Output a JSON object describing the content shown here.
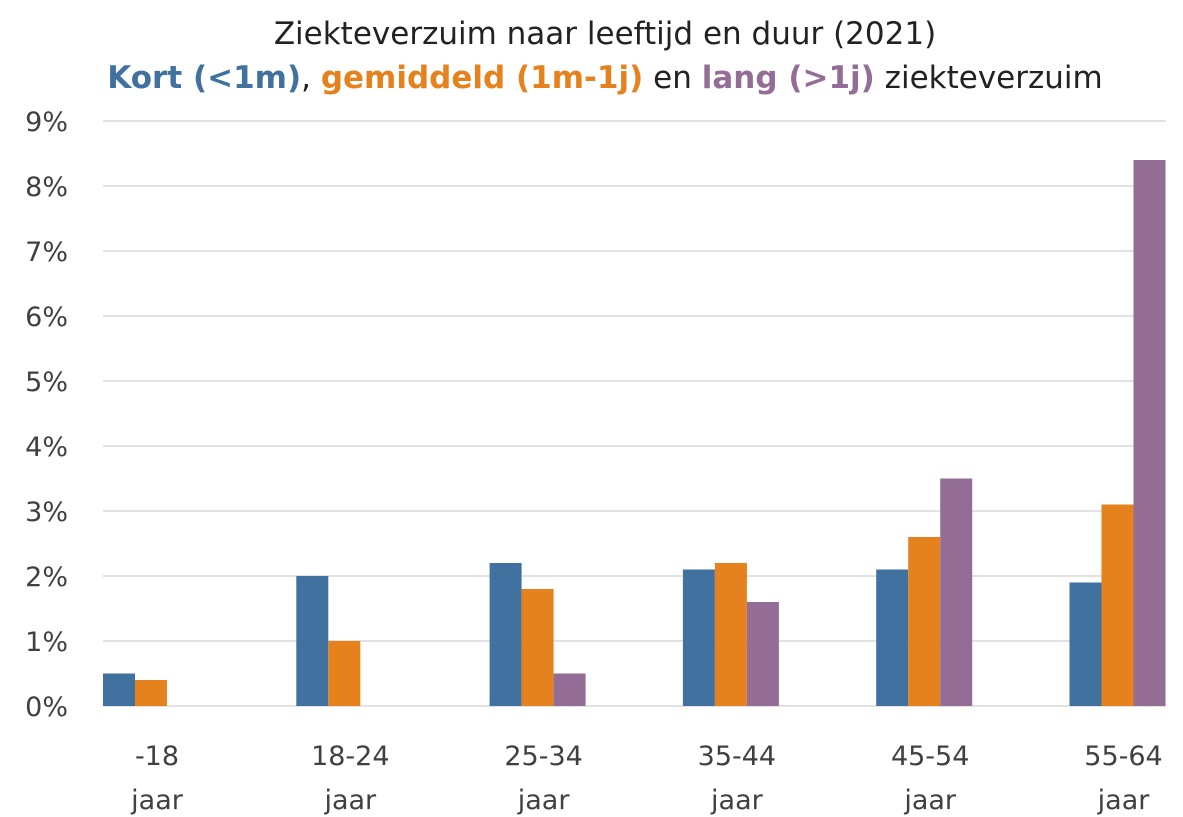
{
  "chart_data": {
    "type": "bar",
    "title": "Ziekteverzuim naar leeftijd en duur (2021)",
    "subtitle_parts": [
      ", ",
      " en ",
      " ziekteverzuim"
    ],
    "categories": [
      "-18 jaar",
      "18-24 jaar",
      "25-34 jaar",
      "35-44 jaar",
      "45-54 jaar",
      "55-64 jaar"
    ],
    "series": [
      {
        "name": "Kort (<1m)",
        "color": "#41729f",
        "values": [
          0.5,
          2.0,
          2.2,
          2.1,
          2.1,
          1.9
        ]
      },
      {
        "name": "gemiddeld (1m-1j)",
        "color": "#e6821e",
        "values": [
          0.4,
          1.0,
          1.8,
          2.2,
          2.6,
          3.1
        ]
      },
      {
        "name": "lang (>1j)",
        "color": "#936d95",
        "values": [
          0,
          0,
          0.5,
          1.6,
          3.5,
          8.4
        ]
      }
    ],
    "ylim": [
      0,
      9
    ],
    "yticks": [
      {
        "value": 0,
        "label": "0%"
      },
      {
        "value": 1,
        "label": "1%"
      },
      {
        "value": 2,
        "label": "2%"
      },
      {
        "value": 3,
        "label": "3%"
      },
      {
        "value": 4,
        "label": "4%"
      },
      {
        "value": 5,
        "label": "5%"
      },
      {
        "value": 6,
        "label": "6%"
      },
      {
        "value": 7,
        "label": "7%"
      },
      {
        "value": 8,
        "label": "8%"
      },
      {
        "value": 9,
        "label": "9%"
      }
    ],
    "grid": true
  }
}
